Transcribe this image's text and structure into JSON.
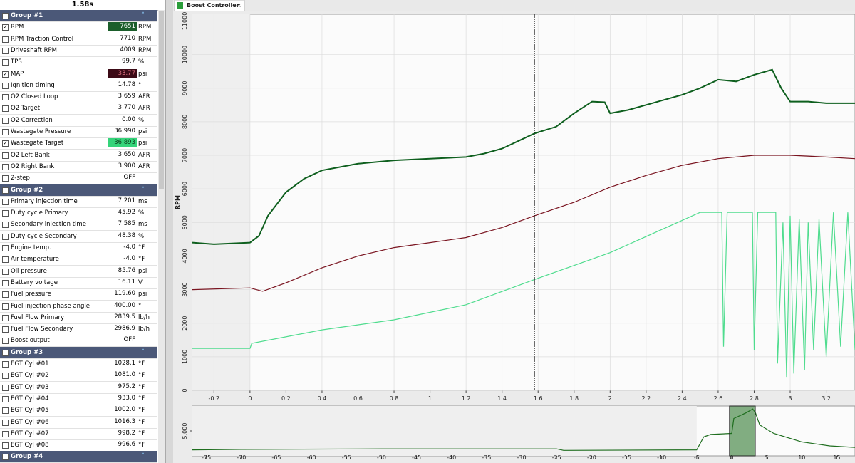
{
  "channel_panel": {
    "time": "1.58s",
    "groups": [
      {
        "title": "Group #1",
        "rows": [
          {
            "name": "RPM",
            "value": "7651",
            "unit": "RPM",
            "checked": true,
            "highlight": "#1b5e2b",
            "highlight_text": "#ffffff"
          },
          {
            "name": "RPM Traction Control",
            "value": "7710",
            "unit": "RPM"
          },
          {
            "name": "Driveshaft RPM",
            "value": "4009",
            "unit": "RPM"
          },
          {
            "name": "TPS",
            "value": "99.7",
            "unit": "%"
          },
          {
            "name": "MAP",
            "value": "33.77",
            "unit": "psi",
            "checked": true,
            "highlight": "#3c0a16",
            "highlight_text": "#e07080"
          },
          {
            "name": "Ignition timing",
            "value": "14.78",
            "unit": "°"
          },
          {
            "name": "O2 Closed Loop",
            "value": "3.659",
            "unit": "AFR"
          },
          {
            "name": "O2 Target",
            "value": "3.770",
            "unit": "AFR"
          },
          {
            "name": "O2 Correction",
            "value": "0.00",
            "unit": "%"
          },
          {
            "name": "Wastegate Pressure",
            "value": "36.990",
            "unit": "psi"
          },
          {
            "name": "Wastegate Target",
            "value": "36.893",
            "unit": "psi",
            "checked": true,
            "highlight": "#35d47a",
            "highlight_text": "#0b3d1c"
          },
          {
            "name": "O2 Left Bank",
            "value": "3.650",
            "unit": "AFR"
          },
          {
            "name": "O2 Right Bank",
            "value": "3.900",
            "unit": "AFR"
          },
          {
            "name": "2-step",
            "value": "OFF"
          }
        ]
      },
      {
        "title": "Group #2",
        "rows": [
          {
            "name": "Primary injection time",
            "value": "7.201",
            "unit": "ms"
          },
          {
            "name": "Duty cycle Primary",
            "value": "45.92",
            "unit": "%"
          },
          {
            "name": "Secondary injection time",
            "value": "7.585",
            "unit": "ms"
          },
          {
            "name": "Duty cycle Secondary",
            "value": "48.38",
            "unit": "%"
          },
          {
            "name": "Engine temp.",
            "value": "-4.0",
            "unit": "°F"
          },
          {
            "name": "Air temperature",
            "value": "-4.0",
            "unit": "°F"
          },
          {
            "name": "Oil pressure",
            "value": "85.76",
            "unit": "psi"
          },
          {
            "name": "Battery voltage",
            "value": "16.11",
            "unit": "V"
          },
          {
            "name": "Fuel pressure",
            "value": "119.60",
            "unit": "psi"
          },
          {
            "name": "Fuel injection phase angle",
            "value": "400.00",
            "unit": "°"
          },
          {
            "name": "Fuel Flow Primary",
            "value": "2839.5",
            "unit": "lb/h"
          },
          {
            "name": "Fuel Flow Secondary",
            "value": "2986.9",
            "unit": "lb/h"
          },
          {
            "name": "Boost output",
            "value": "OFF"
          }
        ]
      },
      {
        "title": "Group #3",
        "rows": [
          {
            "name": "EGT Cyl #01",
            "value": "1028.1",
            "unit": "°F"
          },
          {
            "name": "EGT Cyl #02",
            "value": "1081.0",
            "unit": "°F"
          },
          {
            "name": "EGT Cyl #03",
            "value": "975.2",
            "unit": "°F"
          },
          {
            "name": "EGT Cyl #04",
            "value": "933.0",
            "unit": "°F"
          },
          {
            "name": "EGT Cyl #05",
            "value": "1002.0",
            "unit": "°F"
          },
          {
            "name": "EGT Cyl #06",
            "value": "1016.3",
            "unit": "°F"
          },
          {
            "name": "EGT Cyl #07",
            "value": "998.2",
            "unit": "°F"
          },
          {
            "name": "EGT Cyl #08",
            "value": "996.6",
            "unit": "°F"
          }
        ]
      },
      {
        "title": "Group #4",
        "rows": []
      }
    ]
  },
  "tab": {
    "title": "Boost Controller"
  },
  "chart_data": [
    {
      "type": "line",
      "y_label": "RPM",
      "xlim": [
        -0.32,
        3.36
      ],
      "ylim": [
        0,
        11200
      ],
      "cursor": 1.58,
      "grid": true,
      "xticks": [
        -0.2,
        0,
        0.2,
        0.4,
        0.6,
        0.8,
        1,
        1.2,
        1.4,
        1.6,
        1.8,
        2,
        2.2,
        2.4,
        2.6,
        2.8,
        3,
        3.2
      ],
      "yticks": [
        0,
        1000,
        2000,
        3000,
        4000,
        5000,
        6000,
        7000,
        8000,
        9000,
        10000,
        11000
      ],
      "series": [
        {
          "color": "#0e5f1e",
          "x": [
            -0.32,
            -0.2,
            0,
            0.05,
            0.1,
            0.2,
            0.3,
            0.4,
            0.6,
            0.8,
            1.0,
            1.2,
            1.3,
            1.4,
            1.5,
            1.58,
            1.7,
            1.8,
            1.9,
            1.97,
            2.0,
            2.1,
            2.2,
            2.3,
            2.4,
            2.5,
            2.6,
            2.7,
            2.8,
            2.9,
            2.95,
            3.0,
            3.1,
            3.2,
            3.36
          ],
          "values": [
            4400,
            4350,
            4400,
            4600,
            5200,
            5900,
            6300,
            6550,
            6750,
            6850,
            6900,
            6950,
            7050,
            7200,
            7450,
            7651,
            7850,
            8250,
            8600,
            8580,
            8250,
            8350,
            8500,
            8650,
            8800,
            9000,
            9250,
            9200,
            9400,
            9550,
            9000,
            8600,
            8600,
            8550,
            8550
          ]
        },
        {
          "color": "#7a1420",
          "x": [
            -0.32,
            0,
            0.07,
            0.2,
            0.4,
            0.6,
            0.8,
            1.0,
            1.2,
            1.4,
            1.58,
            1.8,
            2.0,
            2.2,
            2.4,
            2.6,
            2.8,
            3.0,
            3.2,
            3.36
          ],
          "values": [
            3000,
            3050,
            2950,
            3200,
            3650,
            4000,
            4250,
            4400,
            4550,
            4850,
            5200,
            5600,
            6050,
            6400,
            6700,
            6900,
            7000,
            7000,
            6950,
            6900
          ]
        },
        {
          "color": "#4fdc8e",
          "x": [
            -0.32,
            0,
            0.01,
            0.4,
            0.8,
            1.2,
            1.58,
            2.0,
            2.5,
            2.62,
            2.63,
            2.65,
            2.79,
            2.8,
            2.82,
            2.92,
            2.93,
            2.96,
            2.98,
            3.0,
            3.02,
            3.05,
            3.08,
            3.1,
            3.13,
            3.16,
            3.2,
            3.24,
            3.28,
            3.32,
            3.36
          ],
          "values": [
            1250,
            1250,
            1400,
            1800,
            2100,
            2550,
            3300,
            4100,
            5300,
            5300,
            1300,
            5300,
            5300,
            1200,
            5300,
            5300,
            800,
            5000,
            400,
            5200,
            500,
            5100,
            600,
            5000,
            1200,
            5100,
            1000,
            5300,
            1300,
            5300,
            1200
          ]
        }
      ]
    },
    {
      "type": "line",
      "xlim": [
        -77,
        17.6
      ],
      "ylim": [
        0,
        10000
      ],
      "xticks": [
        -75,
        -70,
        -65,
        -60,
        -55,
        -50,
        -45,
        -40,
        -35,
        -30,
        -25,
        -20,
        -15,
        -10,
        -5,
        0,
        5,
        10,
        15
      ],
      "yticks": [
        {
          "value": 5000,
          "label": "5,000"
        }
      ],
      "series": [
        {
          "color": "#1f6e1f",
          "x": [
            -77,
            -70,
            -50,
            -25,
            -24,
            -5,
            -4,
            -3,
            0,
            0.3,
            2,
            3,
            3.4,
            4,
            6,
            10,
            14,
            17.6
          ],
          "values": [
            1200,
            1300,
            1400,
            1400,
            1100,
            1200,
            3800,
            4300,
            4500,
            7500,
            8600,
            9400,
            8600,
            6200,
            4500,
            2800,
            2000,
            1700
          ]
        }
      ]
    }
  ]
}
